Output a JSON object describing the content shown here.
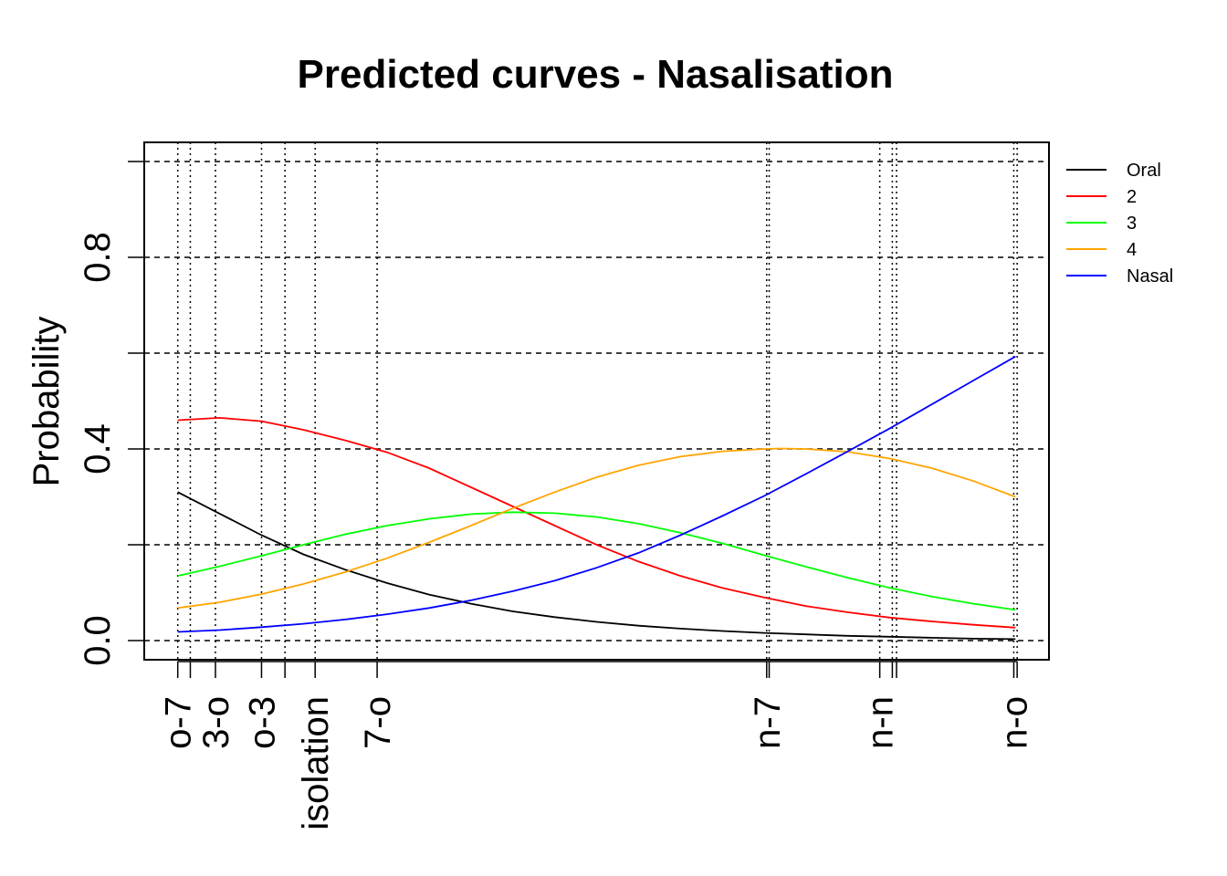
{
  "chart_data": {
    "type": "line",
    "title": "Predicted curves - Nasalisation",
    "ylabel": "Probability",
    "xlabel": "",
    "ylim": [
      0,
      1
    ],
    "xlim": [
      -0.04,
      1.04
    ],
    "y_tick_values": [
      0,
      0.2,
      0.4,
      0.6,
      0.8,
      1.0
    ],
    "y_tick_labels": [
      {
        "value": 0,
        "label": "0.0"
      },
      {
        "value": 0.4,
        "label": "0.4"
      },
      {
        "value": 0.8,
        "label": "0.8"
      }
    ],
    "x_ticks": [
      {
        "x": 0.0,
        "label": "o-7"
      },
      {
        "x": 0.015,
        "label": ""
      },
      {
        "x": 0.045,
        "label": "3-o"
      },
      {
        "x": 0.1,
        "label": "o-3"
      },
      {
        "x": 0.128,
        "label": ""
      },
      {
        "x": 0.164,
        "label": "isolation"
      },
      {
        "x": 0.238,
        "label": "7-o"
      },
      {
        "x": 0.703,
        "label": "n-7"
      },
      {
        "x": 0.706,
        "label": ""
      },
      {
        "x": 0.838,
        "label": "n-n"
      },
      {
        "x": 0.853,
        "label": ""
      },
      {
        "x": 0.858,
        "label": ""
      },
      {
        "x": 0.998,
        "label": "n-o"
      },
      {
        "x": 1.002,
        "label": ""
      }
    ],
    "grid": {
      "horizontal": "dashed",
      "vertical": "dotted at tick positions"
    },
    "legend_position": "top-right",
    "series": [
      {
        "name": "Oral",
        "color": "#000000",
        "x": [
          0.0,
          0.05,
          0.1,
          0.15,
          0.2,
          0.25,
          0.3,
          0.35,
          0.4,
          0.45,
          0.5,
          0.55,
          0.6,
          0.65,
          0.7,
          0.75,
          0.8,
          0.85,
          0.9,
          0.95,
          1.0
        ],
        "values": [
          0.31,
          0.265,
          0.22,
          0.18,
          0.148,
          0.12,
          0.096,
          0.077,
          0.061,
          0.049,
          0.039,
          0.031,
          0.025,
          0.02,
          0.016,
          0.013,
          0.01,
          0.008,
          0.006,
          0.004,
          0.003
        ]
      },
      {
        "name": "2",
        "color": "#ff0000",
        "x": [
          0.0,
          0.05,
          0.1,
          0.15,
          0.2,
          0.25,
          0.3,
          0.35,
          0.4,
          0.45,
          0.5,
          0.55,
          0.6,
          0.65,
          0.7,
          0.75,
          0.8,
          0.85,
          0.9,
          0.95,
          1.0
        ],
        "values": [
          0.46,
          0.465,
          0.458,
          0.44,
          0.418,
          0.393,
          0.36,
          0.32,
          0.28,
          0.24,
          0.2,
          0.165,
          0.135,
          0.11,
          0.09,
          0.072,
          0.059,
          0.048,
          0.04,
          0.033,
          0.027
        ]
      },
      {
        "name": "3",
        "color": "#00ff00",
        "x": [
          0.0,
          0.05,
          0.1,
          0.15,
          0.2,
          0.25,
          0.3,
          0.35,
          0.4,
          0.45,
          0.5,
          0.55,
          0.6,
          0.65,
          0.7,
          0.75,
          0.8,
          0.85,
          0.9,
          0.95,
          1.0
        ],
        "values": [
          0.135,
          0.155,
          0.177,
          0.2,
          0.222,
          0.24,
          0.254,
          0.264,
          0.268,
          0.266,
          0.258,
          0.244,
          0.225,
          0.203,
          0.178,
          0.154,
          0.131,
          0.11,
          0.092,
          0.077,
          0.064
        ]
      },
      {
        "name": "4",
        "color": "#ffa500",
        "x": [
          0.0,
          0.05,
          0.1,
          0.15,
          0.2,
          0.25,
          0.3,
          0.35,
          0.4,
          0.45,
          0.5,
          0.55,
          0.6,
          0.65,
          0.7,
          0.72,
          0.75,
          0.8,
          0.85,
          0.9,
          0.95,
          1.0
        ],
        "values": [
          0.068,
          0.08,
          0.097,
          0.118,
          0.143,
          0.172,
          0.205,
          0.24,
          0.276,
          0.31,
          0.341,
          0.366,
          0.384,
          0.395,
          0.4,
          0.401,
          0.4,
          0.394,
          0.38,
          0.36,
          0.333,
          0.3
        ]
      },
      {
        "name": "Nasal",
        "color": "#0000ff",
        "x": [
          0.0,
          0.05,
          0.1,
          0.15,
          0.2,
          0.25,
          0.3,
          0.35,
          0.4,
          0.45,
          0.5,
          0.55,
          0.6,
          0.65,
          0.7,
          0.75,
          0.8,
          0.85,
          0.9,
          0.95,
          1.0
        ],
        "values": [
          0.018,
          0.022,
          0.028,
          0.035,
          0.044,
          0.055,
          0.068,
          0.084,
          0.103,
          0.125,
          0.152,
          0.183,
          0.22,
          0.26,
          0.302,
          0.348,
          0.395,
          0.443,
          0.493,
          0.543,
          0.593
        ]
      }
    ]
  }
}
